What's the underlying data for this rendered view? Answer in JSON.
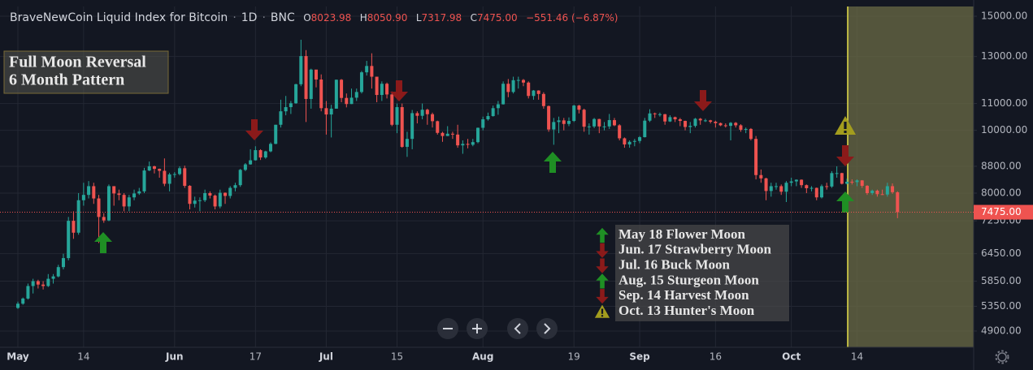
{
  "chart_data": {
    "type": "candlestick",
    "title": "BraveNewCoin Liquid Index for Bitcoin",
    "interval": "1D",
    "exchange": "BNC",
    "ohlc_labels": [
      "O",
      "H",
      "L",
      "C"
    ],
    "last_ohlc": [
      {
        "value": 8023.98,
        "label": "8023.98"
      },
      {
        "value": 8050.9,
        "label": "8050.90"
      },
      {
        "value": 7317.98,
        "label": "7317.98"
      },
      {
        "value": 7475,
        "label": "7475.00"
      }
    ],
    "change": {
      "value": -551.46,
      "label": "−551.46 (−6.87%)"
    },
    "log_scale": true,
    "grid": true,
    "up_color": "#26a69a",
    "down_color": "#ef5350",
    "ylim": [
      4625,
      15530
    ],
    "yticks": [
      {
        "value": 15000,
        "label": "15000.00"
      },
      {
        "value": 13000,
        "label": "13000.00"
      },
      {
        "value": 11000,
        "label": "11000.00"
      },
      {
        "value": 10000,
        "label": "10000.00"
      },
      {
        "value": 8800,
        "label": "8800.00"
      },
      {
        "value": 8000,
        "label": "8000.00"
      },
      {
        "value": 7250,
        "label": "7250.00"
      },
      {
        "value": 6450,
        "label": "6450.00"
      },
      {
        "value": 5850,
        "label": "5850.00"
      },
      {
        "value": 5350,
        "label": "5350.00"
      },
      {
        "value": 4900,
        "label": "4900.00"
      }
    ],
    "xticks": [
      {
        "value": 0,
        "label": "May"
      },
      {
        "value": 13,
        "label": "14"
      },
      {
        "value": 31,
        "label": "Jun"
      },
      {
        "value": 47,
        "label": "17"
      },
      {
        "value": 61,
        "label": "Jul"
      },
      {
        "value": 75,
        "label": "15"
      },
      {
        "value": 92,
        "label": "Aug"
      },
      {
        "value": 110,
        "label": "19"
      },
      {
        "value": 123,
        "label": "Sep"
      },
      {
        "value": 138,
        "label": "16"
      },
      {
        "value": 153,
        "label": "Oct"
      },
      {
        "value": 166,
        "label": "14"
      }
    ],
    "annotation": [
      "Full Moon Reversal",
      "6 Month Pattern"
    ],
    "legend": [
      {
        "label": "May 18 Flower Moon",
        "icon": "up"
      },
      {
        "label": "Jun. 17 Strawberry Moon",
        "icon": "down"
      },
      {
        "label": "Jul. 16 Buck Moon",
        "icon": "down"
      },
      {
        "label": "Aug. 15 Sturgeon Moon",
        "icon": "up"
      },
      {
        "label": "Sep. 14 Harvest Moon",
        "icon": "down"
      },
      {
        "label": "Oct. 13 Hunter's Moon",
        "icon": "warn"
      }
    ],
    "candles": [
      [
        5320,
        5440,
        5300,
        5400
      ],
      [
        5400,
        5520,
        5380,
        5500
      ],
      [
        5500,
        5800,
        5480,
        5750
      ],
      [
        5750,
        5900,
        5600,
        5850
      ],
      [
        5850,
        5880,
        5700,
        5780
      ],
      [
        5780,
        5850,
        5680,
        5750
      ],
      [
        5750,
        6000,
        5730,
        5900
      ],
      [
        5900,
        6000,
        5800,
        5950
      ],
      [
        5950,
        6200,
        5930,
        6150
      ],
      [
        6150,
        6450,
        6100,
        6350
      ],
      [
        6350,
        7350,
        6300,
        7250
      ],
      [
        7250,
        7500,
        6800,
        6950
      ],
      [
        6950,
        8000,
        6900,
        7800
      ],
      [
        7800,
        8300,
        7650,
        7950
      ],
      [
        7950,
        8350,
        7850,
        8200
      ],
      [
        8200,
        8300,
        7700,
        7850
      ],
      [
        7850,
        7950,
        6700,
        7350
      ],
      [
        7350,
        7450,
        7200,
        7260
      ],
      [
        7260,
        8250,
        7240,
        8200
      ],
      [
        8200,
        8200,
        7650,
        7990
      ],
      [
        7990,
        8100,
        7800,
        7950
      ],
      [
        7950,
        8000,
        7500,
        7630
      ],
      [
        7630,
        7950,
        7500,
        7880
      ],
      [
        7880,
        8100,
        7800,
        7990
      ],
      [
        7990,
        8150,
        7950,
        8050
      ],
      [
        8050,
        8750,
        8000,
        8670
      ],
      [
        8670,
        8950,
        8650,
        8800
      ],
      [
        8800,
        8820,
        8580,
        8720
      ],
      [
        8720,
        8730,
        8450,
        8660
      ],
      [
        8660,
        9050,
        8200,
        8270
      ],
      [
        8270,
        8600,
        8050,
        8550
      ],
      [
        8550,
        8620,
        8450,
        8560
      ],
      [
        8560,
        8800,
        8520,
        8740
      ],
      [
        8740,
        8820,
        8150,
        8210
      ],
      [
        8210,
        8230,
        7550,
        7700
      ],
      [
        7700,
        7900,
        7600,
        7790
      ],
      [
        7790,
        7880,
        7500,
        7800
      ],
      [
        7800,
        8100,
        7750,
        8000
      ],
      [
        8000,
        8050,
        7850,
        7930
      ],
      [
        7930,
        7960,
        7550,
        7630
      ],
      [
        7630,
        8100,
        7580,
        8010
      ],
      [
        8010,
        8020,
        7700,
        7920
      ],
      [
        7920,
        8200,
        7850,
        8150
      ],
      [
        8150,
        8300,
        8050,
        8230
      ],
      [
        8230,
        8720,
        8180,
        8690
      ],
      [
        8690,
        8900,
        8650,
        8860
      ],
      [
        8860,
        9350,
        8850,
        8990
      ],
      [
        8990,
        9450,
        8980,
        9320
      ],
      [
        9320,
        9350,
        9000,
        9080
      ],
      [
        9080,
        9300,
        9040,
        9280
      ],
      [
        9280,
        9580,
        9250,
        9530
      ],
      [
        9530,
        10200,
        9520,
        10200
      ],
      [
        10200,
        11150,
        10100,
        10700
      ],
      [
        10700,
        11300,
        10550,
        10860
      ],
      [
        10860,
        11100,
        10600,
        11010
      ],
      [
        11010,
        11800,
        10990,
        11780
      ],
      [
        11780,
        13800,
        11700,
        13020
      ],
      [
        13020,
        13300,
        10300,
        11180
      ],
      [
        11180,
        12450,
        10800,
        12410
      ],
      [
        12410,
        12400,
        11650,
        11980
      ],
      [
        11980,
        12200,
        10700,
        10820
      ],
      [
        10820,
        11100,
        9850,
        10580
      ],
      [
        10580,
        10950,
        9750,
        10800
      ],
      [
        10800,
        11980,
        10800,
        11970
      ],
      [
        11970,
        12000,
        11050,
        11220
      ],
      [
        11220,
        11400,
        10850,
        10980
      ],
      [
        10980,
        11600,
        10980,
        11230
      ],
      [
        11230,
        11600,
        11100,
        11460
      ],
      [
        11460,
        12350,
        11400,
        12290
      ],
      [
        12290,
        12800,
        12150,
        12570
      ],
      [
        12570,
        13150,
        11600,
        12100
      ],
      [
        12100,
        12100,
        11050,
        11340
      ],
      [
        11340,
        11900,
        11100,
        11800
      ],
      [
        11800,
        11850,
        11200,
        11360
      ],
      [
        11360,
        11480,
        10150,
        10200
      ],
      [
        10200,
        11000,
        9900,
        10860
      ],
      [
        10860,
        11000,
        9400,
        9430
      ],
      [
        9430,
        9950,
        9100,
        9700
      ],
      [
        9700,
        10750,
        9350,
        10630
      ],
      [
        10630,
        10700,
        10250,
        10530
      ],
      [
        10530,
        11000,
        10400,
        10760
      ],
      [
        10760,
        10800,
        10200,
        10590
      ],
      [
        10590,
        10650,
        10100,
        10330
      ],
      [
        10330,
        10350,
        9850,
        9910
      ],
      [
        9910,
        9950,
        9600,
        9800
      ],
      [
        9800,
        10150,
        9800,
        9880
      ],
      [
        9880,
        9950,
        9700,
        9850
      ],
      [
        9850,
        10200,
        9400,
        9480
      ],
      [
        9480,
        9650,
        9200,
        9530
      ],
      [
        9530,
        9700,
        9380,
        9500
      ],
      [
        9500,
        9700,
        9450,
        9590
      ],
      [
        9590,
        10100,
        9550,
        10090
      ],
      [
        10090,
        10500,
        10000,
        10400
      ],
      [
        10400,
        10650,
        10350,
        10520
      ],
      [
        10520,
        10920,
        10500,
        10820
      ],
      [
        10820,
        11100,
        10570,
        10970
      ],
      [
        10970,
        11900,
        10960,
        11800
      ],
      [
        11800,
        12000,
        11250,
        11460
      ],
      [
        11460,
        12100,
        11400,
        11950
      ],
      [
        11950,
        12100,
        11600,
        11960
      ],
      [
        11960,
        12000,
        11700,
        11850
      ],
      [
        11850,
        11900,
        11200,
        11300
      ],
      [
        11300,
        11540,
        11150,
        11520
      ],
      [
        11520,
        11530,
        11150,
        11380
      ],
      [
        11380,
        11450,
        10800,
        10900
      ],
      [
        10900,
        10920,
        9950,
        10030
      ],
      [
        10030,
        10450,
        9500,
        10300
      ],
      [
        10300,
        10500,
        9900,
        10360
      ],
      [
        10360,
        10450,
        10000,
        10230
      ],
      [
        10230,
        10470,
        10150,
        10340
      ],
      [
        10340,
        10950,
        10300,
        10920
      ],
      [
        10920,
        10950,
        10620,
        10760
      ],
      [
        10760,
        10800,
        9950,
        10130
      ],
      [
        10130,
        10250,
        9850,
        10140
      ],
      [
        10140,
        10450,
        10080,
        10410
      ],
      [
        10410,
        10420,
        9900,
        10140
      ],
      [
        10140,
        10300,
        10000,
        10140
      ],
      [
        10140,
        10600,
        10050,
        10370
      ],
      [
        10370,
        10450,
        10150,
        10180
      ],
      [
        10180,
        10220,
        9650,
        9720
      ],
      [
        9720,
        9750,
        9400,
        9510
      ],
      [
        9510,
        9650,
        9400,
        9600
      ],
      [
        9600,
        9700,
        9450,
        9630
      ],
      [
        9630,
        9800,
        9550,
        9760
      ],
      [
        9760,
        10450,
        9750,
        10350
      ],
      [
        10350,
        10780,
        10300,
        10620
      ],
      [
        10620,
        10650,
        10450,
        10590
      ],
      [
        10590,
        10650,
        10500,
        10590
      ],
      [
        10590,
        10600,
        10200,
        10320
      ],
      [
        10320,
        10550,
        10300,
        10480
      ],
      [
        10480,
        10500,
        10300,
        10400
      ],
      [
        10400,
        10450,
        10150,
        10340
      ],
      [
        10340,
        10350,
        10000,
        10120
      ],
      [
        10120,
        10300,
        9900,
        10160
      ],
      [
        10160,
        10450,
        10100,
        10420
      ],
      [
        10420,
        10450,
        10200,
        10360
      ],
      [
        10360,
        10420,
        10300,
        10360
      ],
      [
        10360,
        10380,
        10250,
        10310
      ],
      [
        10310,
        10350,
        10100,
        10260
      ],
      [
        10260,
        10280,
        10150,
        10180
      ],
      [
        10180,
        10250,
        10100,
        10160
      ],
      [
        10160,
        10300,
        9650,
        10270
      ],
      [
        10270,
        10300,
        10100,
        10180
      ],
      [
        10180,
        10220,
        9950,
        10020
      ],
      [
        10020,
        10100,
        9900,
        10050
      ],
      [
        10050,
        10080,
        9650,
        9700
      ],
      [
        9700,
        9800,
        8400,
        8530
      ],
      [
        8530,
        8700,
        8300,
        8430
      ],
      [
        8430,
        8450,
        7800,
        8060
      ],
      [
        8060,
        8300,
        7900,
        8200
      ],
      [
        8200,
        8300,
        8100,
        8200
      ],
      [
        8200,
        8250,
        7950,
        8040
      ],
      [
        8040,
        8350,
        7750,
        8300
      ],
      [
        8300,
        8450,
        8200,
        8340
      ],
      [
        8340,
        8400,
        8200,
        8390
      ],
      [
        8390,
        8400,
        8150,
        8230
      ],
      [
        8230,
        8250,
        8000,
        8140
      ],
      [
        8140,
        8200,
        8050,
        8150
      ],
      [
        8150,
        8160,
        7800,
        7880
      ],
      [
        7880,
        8250,
        7850,
        8200
      ],
      [
        8200,
        8300,
        8100,
        8190
      ],
      [
        8190,
        8650,
        8150,
        8590
      ],
      [
        8590,
        8800,
        8450,
        8590
      ],
      [
        8590,
        8600,
        8250,
        8270
      ],
      [
        8270,
        8420,
        8250,
        8330
      ],
      [
        8330,
        8400,
        8250,
        8320
      ],
      [
        8320,
        8400,
        8200,
        8370
      ],
      [
        8370,
        8380,
        8150,
        8210
      ],
      [
        8210,
        8230,
        7950,
        8000
      ],
      [
        8000,
        8100,
        7950,
        8070
      ],
      [
        8070,
        8100,
        7900,
        7970
      ],
      [
        7970,
        8100,
        7950,
        7960
      ],
      [
        7960,
        8300,
        7900,
        8200
      ],
      [
        8200,
        8280,
        7980,
        8026.46
      ],
      [
        8023.98,
        8050.9,
        7317.98,
        7475
      ]
    ]
  }
}
